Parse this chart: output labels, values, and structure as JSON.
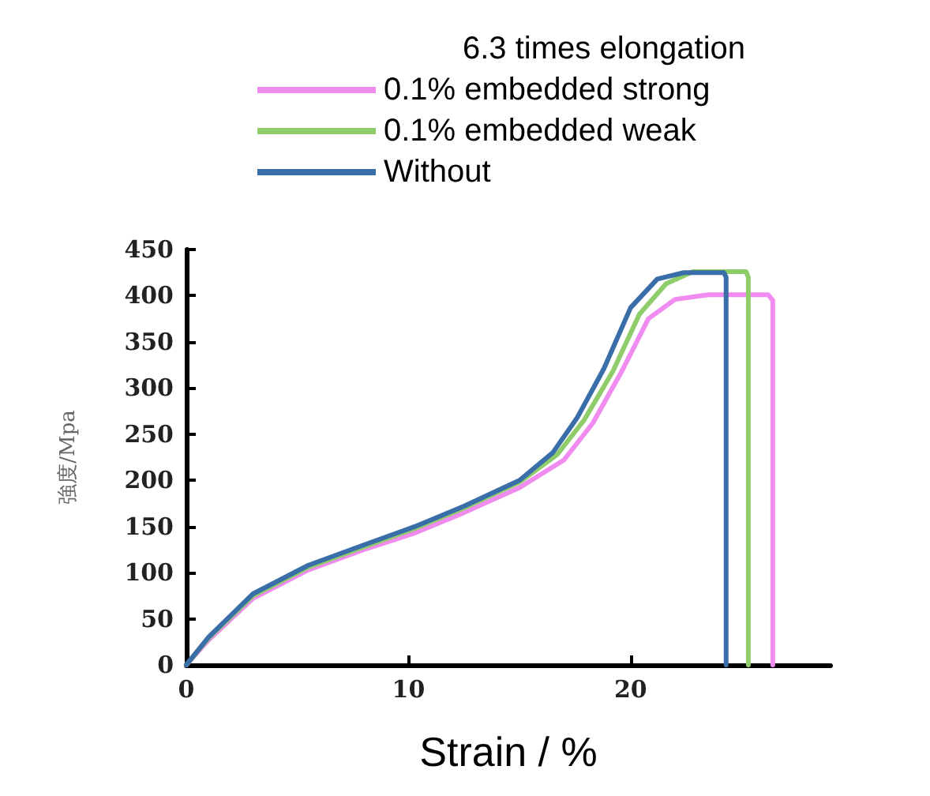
{
  "chart_data": {
    "type": "line",
    "legend_title": "6.3 times elongation",
    "xlabel": "Strain / %",
    "ylabel": "強度/Mpa",
    "xlim": [
      0,
      29
    ],
    "xticks": [
      0,
      10,
      20
    ],
    "ylim": [
      0,
      450
    ],
    "yticks": [
      0,
      50,
      100,
      150,
      200,
      250,
      300,
      350,
      400,
      450
    ],
    "grid": false,
    "legend": "top",
    "marker": "none",
    "line_style": "solid",
    "series": [
      {
        "name": "0.1% embedded strong",
        "color": "#f08cf0",
        "x": [
          0,
          1,
          3,
          5.5,
          8,
          10.3,
          12.5,
          15,
          17,
          18.3,
          19.6,
          20.8,
          22,
          23.5,
          26.2,
          26.4,
          26.4
        ],
        "values": [
          0,
          27,
          72,
          103,
          125,
          143,
          165,
          192,
          222,
          262,
          318,
          375,
          396,
          401,
          401,
          395,
          0
        ]
      },
      {
        "name": "0.1% embedded weak",
        "color": "#8fcc6a",
        "x": [
          0,
          1,
          3,
          5.5,
          8,
          10.3,
          12.5,
          15,
          16.7,
          17.9,
          19.2,
          20.4,
          21.6,
          22.8,
          25.2,
          25.3,
          25.3
        ],
        "values": [
          0,
          29,
          75,
          106,
          128,
          148,
          170,
          198,
          228,
          265,
          318,
          380,
          413,
          426,
          426,
          420,
          0
        ]
      },
      {
        "name": "Without",
        "color": "#3a6ea8",
        "x": [
          0,
          1,
          3,
          5.5,
          8,
          10.3,
          12.5,
          15,
          16.5,
          17.6,
          18.8,
          20,
          21.2,
          22.4,
          24.2,
          24.3,
          24.3
        ],
        "values": [
          0,
          30,
          77,
          108,
          130,
          150,
          172,
          200,
          230,
          268,
          321,
          387,
          418,
          425,
          425,
          420,
          0
        ]
      }
    ]
  }
}
